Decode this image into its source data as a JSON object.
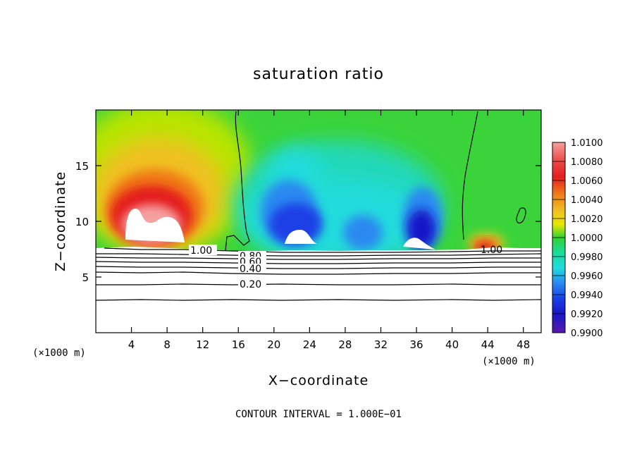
{
  "chart_data": {
    "type": "heatmap",
    "title": "saturation ratio",
    "xlabel": "X−coordinate",
    "ylabel": "Z−coordinate",
    "x_unit": "(×1000 m)",
    "x_unit_right": "(×1000 m)",
    "xlim": [
      0,
      50
    ],
    "ylim": [
      0,
      20
    ],
    "x_ticks": [
      4,
      8,
      12,
      16,
      20,
      24,
      28,
      32,
      36,
      40,
      44,
      48
    ],
    "y_ticks": [
      5,
      10,
      15
    ],
    "colorbar": {
      "levels": [
        "1.0100",
        "1.0080",
        "1.0060",
        "1.0040",
        "1.0020",
        "1.0000",
        "0.9980",
        "0.9960",
        "0.9940",
        "0.9920",
        "0.9900"
      ],
      "colors": [
        "#f6a0a0",
        "#ee4f4f",
        "#e41e1e",
        "#f07a18",
        "#f0c020",
        "#e8e800",
        "#32d232",
        "#18dc9c",
        "#20dcdc",
        "#2a8af0",
        "#1a40e6",
        "#1818c8",
        "#5a18a8"
      ]
    },
    "contour_lines": [
      {
        "label": "1.00",
        "x": 11,
        "z": 7.6
      },
      {
        "label": "0.80",
        "x": 19,
        "z": 7.3
      },
      {
        "label": "0.60",
        "x": 19,
        "z": 6.8
      },
      {
        "label": "0.40",
        "x": 19,
        "z": 5.9
      },
      {
        "label": "0.20",
        "x": 19,
        "z": 4.4
      },
      {
        "label": "1.00",
        "x": 43.8,
        "z": 7.6
      }
    ],
    "contour_interval_note": "CONTOUR INTERVAL = 1.000E−01"
  }
}
